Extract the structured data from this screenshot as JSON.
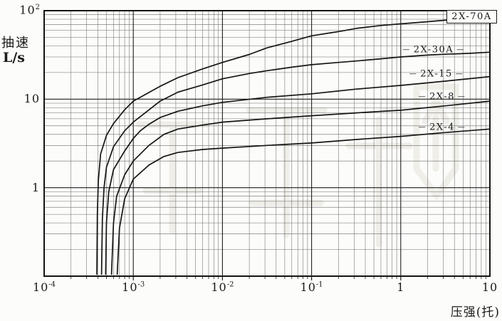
{
  "y_axis": {
    "title": "抽速",
    "unit": "L/s",
    "ticks": [
      {
        "text": "10",
        "exp": "2",
        "value": 100
      },
      {
        "text": "10",
        "exp": "",
        "value": 10
      },
      {
        "text": "1",
        "exp": "",
        "value": 1
      }
    ]
  },
  "x_axis": {
    "title": "压强(托)",
    "ticks": [
      {
        "text": "10",
        "exp": "-4",
        "value": 0.0001
      },
      {
        "text": "10",
        "exp": "-3",
        "value": 0.001
      },
      {
        "text": "10",
        "exp": "-2",
        "value": 0.01
      },
      {
        "text": "10",
        "exp": "-1",
        "value": 0.1
      },
      {
        "text": "1",
        "exp": "",
        "value": 1
      },
      {
        "text": "10",
        "exp": "",
        "value": 10
      }
    ]
  },
  "chart_data": {
    "type": "line",
    "title": "",
    "xlabel": "压强(托)",
    "ylabel": "抽速 L/s",
    "x_scale": "log",
    "y_scale": "log",
    "xlim": [
      0.0001,
      10
    ],
    "ylim": [
      0.1,
      100
    ],
    "grid": "log major and minor gridlines on both axes",
    "legend_position": "inline labels at right side of curves",
    "line_color": "#151515",
    "series": [
      {
        "name": "2X-70A",
        "label_boxed": true,
        "points": [
          [
            0.00039,
            0.105
          ],
          [
            0.000395,
            0.5
          ],
          [
            0.000405,
            1.2
          ],
          [
            0.00043,
            2.4
          ],
          [
            0.0005,
            3.9
          ],
          [
            0.0006,
            5.3
          ],
          [
            0.0008,
            7.6
          ],
          [
            0.001,
            9.5
          ],
          [
            0.002,
            14
          ],
          [
            0.00316,
            17.5
          ],
          [
            0.006,
            22
          ],
          [
            0.01,
            26
          ],
          [
            0.02,
            32
          ],
          [
            0.0316,
            38
          ],
          [
            0.06,
            45
          ],
          [
            0.1,
            52
          ],
          [
            0.2,
            58
          ],
          [
            0.316,
            63
          ],
          [
            0.6,
            68
          ],
          [
            1,
            71
          ],
          [
            2,
            75
          ],
          [
            3.16,
            78
          ],
          [
            6,
            80
          ],
          [
            10,
            81
          ]
        ]
      },
      {
        "name": "2X-30A",
        "label_boxed": false,
        "points": [
          [
            0.00044,
            0.105
          ],
          [
            0.00045,
            0.45
          ],
          [
            0.00047,
            1.0
          ],
          [
            0.0005,
            1.7
          ],
          [
            0.0006,
            2.9
          ],
          [
            0.0008,
            4.4
          ],
          [
            0.001,
            5.5
          ],
          [
            0.002,
            9.5
          ],
          [
            0.00316,
            12
          ],
          [
            0.006,
            14.5
          ],
          [
            0.01,
            17
          ],
          [
            0.02,
            19.5
          ],
          [
            0.0316,
            21
          ],
          [
            0.06,
            23
          ],
          [
            0.1,
            24.5
          ],
          [
            0.2,
            26
          ],
          [
            0.316,
            27
          ],
          [
            0.6,
            28.6
          ],
          [
            1,
            30
          ],
          [
            2,
            31.5
          ],
          [
            3.16,
            32.2
          ],
          [
            6,
            33
          ],
          [
            10,
            34
          ]
        ]
      },
      {
        "name": "2X-15",
        "label_boxed": false,
        "points": [
          [
            0.00049,
            0.105
          ],
          [
            0.0005,
            0.4
          ],
          [
            0.00053,
            0.9
          ],
          [
            0.0006,
            1.6
          ],
          [
            0.0008,
            2.6
          ],
          [
            0.001,
            3.6
          ],
          [
            0.0012,
            4.4
          ],
          [
            0.0015,
            5.2
          ],
          [
            0.002,
            6.2
          ],
          [
            0.00316,
            7.3
          ],
          [
            0.006,
            8.4
          ],
          [
            0.01,
            9.2
          ],
          [
            0.0316,
            10.5
          ],
          [
            0.1,
            11.5
          ],
          [
            0.316,
            13
          ],
          [
            1,
            14.3
          ],
          [
            3.16,
            16
          ],
          [
            10,
            18
          ]
        ]
      },
      {
        "name": "2X-8",
        "label_boxed": false,
        "points": [
          [
            0.00057,
            0.105
          ],
          [
            0.0006,
            0.4
          ],
          [
            0.00065,
            0.8
          ],
          [
            0.0008,
            1.4
          ],
          [
            0.001,
            2.0
          ],
          [
            0.0015,
            3.0
          ],
          [
            0.0022,
            4.0
          ],
          [
            0.00316,
            4.6
          ],
          [
            0.006,
            5.1
          ],
          [
            0.01,
            5.5
          ],
          [
            0.0316,
            6.0
          ],
          [
            0.1,
            6.5
          ],
          [
            0.316,
            7.0
          ],
          [
            1,
            7.5
          ],
          [
            3.16,
            8.4
          ],
          [
            10,
            9.5
          ]
        ]
      },
      {
        "name": "2X-4",
        "label_boxed": false,
        "points": [
          [
            0.00066,
            0.105
          ],
          [
            0.0007,
            0.35
          ],
          [
            0.0008,
            0.75
          ],
          [
            0.001,
            1.25
          ],
          [
            0.0015,
            1.8
          ],
          [
            0.0022,
            2.25
          ],
          [
            0.00316,
            2.5
          ],
          [
            0.006,
            2.7
          ],
          [
            0.01,
            2.8
          ],
          [
            0.0316,
            3.0
          ],
          [
            0.1,
            3.2
          ],
          [
            0.316,
            3.5
          ],
          [
            1,
            3.8
          ],
          [
            3.16,
            4.2
          ],
          [
            10,
            4.6
          ]
        ]
      }
    ]
  }
}
